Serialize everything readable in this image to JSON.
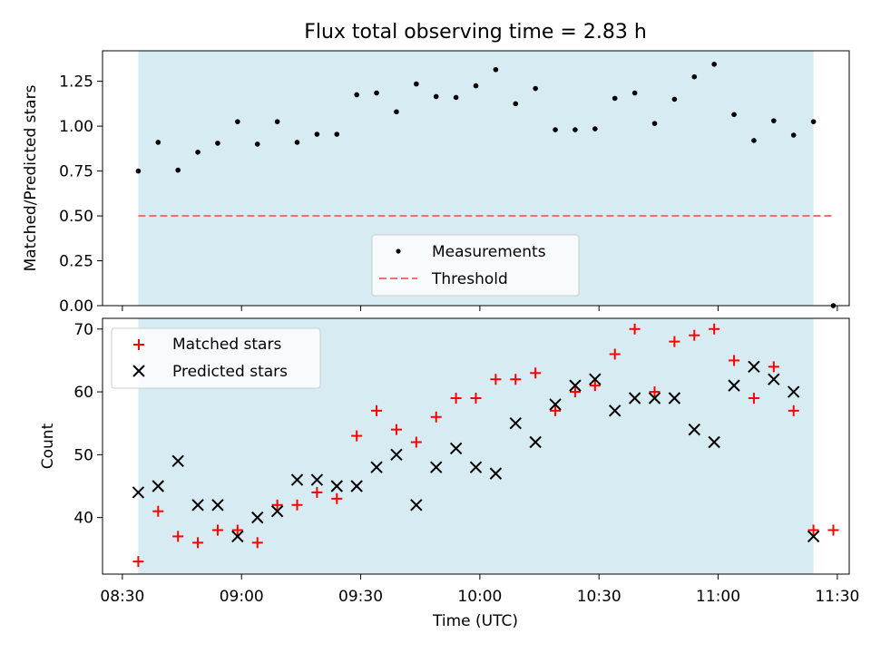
{
  "chart_data": [
    {
      "type": "scatter",
      "title": "Flux total observing time = 2.83 h",
      "xlabel": "",
      "ylabel": "Matched/Predicted stars",
      "xlim": [
        "08:25",
        "11:33"
      ],
      "ylim": [
        0,
        1.42
      ],
      "yticks": [
        "0.00",
        "0.25",
        "0.50",
        "0.75",
        "1.00",
        "1.25"
      ],
      "ytick_values": [
        0,
        0.25,
        0.5,
        0.75,
        1.0,
        1.25
      ],
      "shaded_span": [
        "08:34",
        "11:24"
      ],
      "shade_color": "#add8e6",
      "legend": {
        "position": "lower center",
        "items": [
          "Measurements",
          "Threshold"
        ]
      },
      "series": [
        {
          "name": "Measurements",
          "marker": "dot",
          "color": "#000000",
          "x": [
            "08:34",
            "08:39",
            "08:44",
            "08:49",
            "08:54",
            "08:59",
            "09:04",
            "09:09",
            "09:14",
            "09:19",
            "09:24",
            "09:29",
            "09:34",
            "09:39",
            "09:44",
            "09:49",
            "09:54",
            "09:59",
            "10:04",
            "10:09",
            "10:14",
            "10:19",
            "10:24",
            "10:29",
            "10:34",
            "10:39",
            "10:44",
            "10:49",
            "10:54",
            "10:59",
            "11:04",
            "11:09",
            "11:14",
            "11:19",
            "11:24",
            "11:29"
          ],
          "y": [
            0.75,
            0.91,
            0.755,
            0.855,
            0.905,
            1.025,
            0.9,
            1.025,
            0.91,
            0.955,
            0.955,
            1.175,
            1.185,
            1.08,
            1.235,
            1.165,
            1.16,
            1.225,
            1.315,
            1.125,
            1.21,
            0.98,
            0.98,
            0.985,
            1.155,
            1.185,
            1.015,
            1.15,
            1.275,
            1.345,
            1.065,
            0.92,
            1.03,
            0.95,
            1.025,
            0.0
          ]
        },
        {
          "name": "Threshold",
          "marker": "dashed-line",
          "color": "#f07070",
          "x": [
            "08:34",
            "11:29"
          ],
          "y": [
            0.5,
            0.5
          ]
        }
      ]
    },
    {
      "type": "scatter",
      "title": "",
      "xlabel": "Time (UTC)",
      "ylabel": "Count",
      "xlim": [
        "08:25",
        "11:33"
      ],
      "xticks": [
        "08:30",
        "09:00",
        "09:30",
        "10:00",
        "10:30",
        "11:00",
        "11:30"
      ],
      "ylim": [
        31,
        71.7
      ],
      "yticks": [
        "40",
        "50",
        "60",
        "70"
      ],
      "ytick_values": [
        40,
        50,
        60,
        70
      ],
      "shaded_span": [
        "08:34",
        "11:24"
      ],
      "shade_color": "#add8e6",
      "legend": {
        "position": "upper left",
        "items": [
          "Matched stars",
          "Predicted stars"
        ]
      },
      "series": [
        {
          "name": "Matched stars",
          "marker": "plus",
          "color": "#ff0000",
          "x": [
            "08:34",
            "08:39",
            "08:44",
            "08:49",
            "08:54",
            "08:59",
            "09:04",
            "09:09",
            "09:14",
            "09:19",
            "09:24",
            "09:29",
            "09:34",
            "09:39",
            "09:44",
            "09:49",
            "09:54",
            "09:59",
            "10:04",
            "10:09",
            "10:14",
            "10:19",
            "10:24",
            "10:29",
            "10:34",
            "10:39",
            "10:44",
            "10:49",
            "10:54",
            "10:59",
            "11:04",
            "11:09",
            "11:14",
            "11:19",
            "11:24",
            "11:29"
          ],
          "y": [
            33,
            41,
            37,
            36,
            38,
            38,
            36,
            42,
            42,
            44,
            43,
            53,
            57,
            54,
            52,
            56,
            59,
            59,
            62,
            62,
            63,
            57,
            60,
            61,
            66,
            70,
            60,
            68,
            69,
            70,
            65,
            59,
            64,
            57,
            38,
            38
          ]
        },
        {
          "name": "Predicted stars",
          "marker": "x",
          "color": "#000000",
          "x": [
            "08:34",
            "08:39",
            "08:44",
            "08:49",
            "08:54",
            "08:59",
            "09:04",
            "09:09",
            "09:14",
            "09:19",
            "09:24",
            "09:29",
            "09:34",
            "09:39",
            "09:44",
            "09:49",
            "09:54",
            "09:59",
            "10:04",
            "10:09",
            "10:14",
            "10:19",
            "10:24",
            "10:29",
            "10:34",
            "10:39",
            "10:44",
            "10:49",
            "10:54",
            "10:59",
            "11:04",
            "11:09",
            "11:14",
            "11:19",
            "11:24"
          ],
          "y": [
            44,
            45,
            49,
            42,
            42,
            37,
            40,
            41,
            46,
            46,
            45,
            45,
            48,
            50,
            42,
            48,
            51,
            48,
            47,
            55,
            52,
            58,
            61,
            62,
            57,
            59,
            59,
            59,
            54,
            52,
            61,
            64,
            62,
            60,
            37
          ]
        }
      ]
    }
  ]
}
